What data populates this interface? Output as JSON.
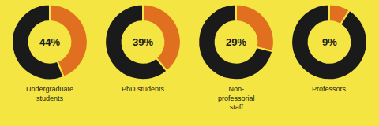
{
  "chart_data": [
    {
      "type": "pie",
      "title": "Undergraduate\nstudents",
      "values": [
        44,
        56
      ],
      "colors": [
        "#e07020",
        "#1a1a1a"
      ],
      "annotations": [
        "44%"
      ]
    },
    {
      "type": "pie",
      "title": "PhD students",
      "values": [
        39,
        61
      ],
      "colors": [
        "#e07020",
        "#1a1a1a"
      ],
      "annotations": [
        "39%"
      ]
    },
    {
      "type": "pie",
      "title": "Non-\nprofessorial\nstaff",
      "values": [
        29,
        71
      ],
      "colors": [
        "#e07020",
        "#1a1a1a"
      ],
      "annotations": [
        "29%"
      ]
    },
    {
      "type": "pie",
      "title": "Professors",
      "values": [
        9,
        91
      ],
      "colors": [
        "#e07020",
        "#1a1a1a"
      ],
      "annotations": [
        "9%"
      ]
    }
  ]
}
